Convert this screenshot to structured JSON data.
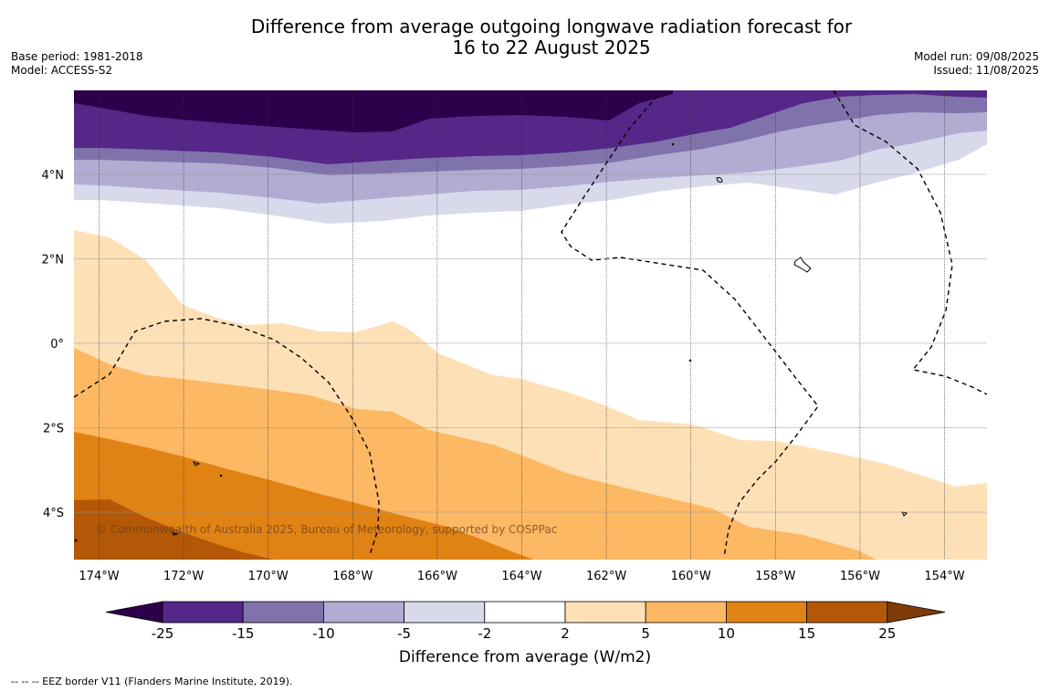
{
  "header": {
    "title_line1": "Difference from average outgoing longwave radiation forecast for",
    "title_line2": "16 to 22 August 2025",
    "base_period": "Base period: 1981-2018",
    "model": "Model: ACCESS-S2",
    "model_run": "Model run: 09/08/2025",
    "issued": "Issued: 11/08/2025"
  },
  "map": {
    "lon_labels": [
      "174°W",
      "172°W",
      "170°W",
      "168°W",
      "166°W",
      "164°W",
      "162°W",
      "160°W",
      "158°W",
      "156°W",
      "154°W"
    ],
    "lat_labels": [
      "4°N",
      "2°N",
      "0°",
      "2°S",
      "4°S"
    ],
    "copyright": "© Commonwealth of Australia 2025, Bureau of Meteorology, supported by COSPPac"
  },
  "colorbar": {
    "ticks": [
      "-25",
      "-15",
      "-10",
      "-5",
      "-2",
      "2",
      "5",
      "10",
      "15",
      "25"
    ],
    "colors": [
      "#2d004b",
      "#542788",
      "#8073ac",
      "#b2abd2",
      "#d8daeb",
      "#ffffff",
      "#fee0b6",
      "#fdb863",
      "#e08214",
      "#b35806",
      "#7f3b08"
    ],
    "label": "Difference from average (W/m2)"
  },
  "footnote": "--  --  -- EEZ border V11 (Flanders Marine Institute, 2019)."
}
